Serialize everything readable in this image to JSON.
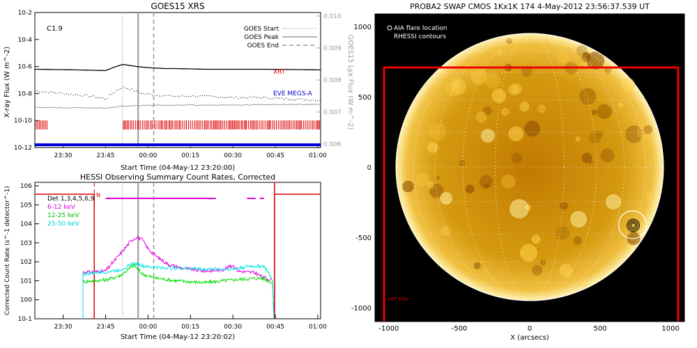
{
  "colors": {
    "goes_long": "#000000",
    "goes_short": "#000000",
    "goes_lyx": "#999999",
    "xrt": "#dd0000",
    "eve": "#0000cc",
    "h6_12": "#e000e0",
    "h12_25": "#00dd00",
    "h25_50": "#00e5e5",
    "det": "#000000",
    "fov": "#ee0000",
    "sun_limb": "#ffffff",
    "grid": "#ffffff",
    "goes_markers": "#999999"
  },
  "chart_data": [
    {
      "type": "line",
      "title": "GOES15 XRS",
      "xlabel": "Start Time (04-May-12 23:20:00)",
      "ylabel": "X-ray Flux (W m^-2)",
      "ylabel2": "GOES15 Lyx Flux (W m^-2)",
      "x_ticks": [
        "23:30",
        "23:45",
        "00:00",
        "00:15",
        "00:30",
        "00:45",
        "01:00"
      ],
      "y_ticks": [
        "10^-2",
        "10^-4",
        "10^-6",
        "10^-8",
        "10^-10",
        "10^-12"
      ],
      "y2_ticks": [
        "0.010",
        "0.009",
        "0.008",
        "0.007",
        "0.006"
      ],
      "ylim": [
        1e-12,
        0.01
      ],
      "y2lim": [
        0.006,
        0.01
      ],
      "flare_class": "C1.9",
      "legend": [
        {
          "label": "GOES Start",
          "style": "dotted"
        },
        {
          "label": "GOES Peak",
          "style": "solid"
        },
        {
          "label": "GOES End",
          "style": "dashed"
        }
      ],
      "annotations": [
        "XRT",
        "EVE MEGS-A"
      ],
      "goes_times": {
        "start": "23:51",
        "peak": "23:56",
        "end": "00:02"
      },
      "series": [
        {
          "key": "long",
          "x": [
            0,
            15,
            25,
            28,
            31,
            33,
            36,
            41,
            46,
            50,
            60,
            70,
            80,
            90,
            101
          ],
          "y": [
            -6.2,
            -6.25,
            -6.3,
            -6.05,
            -5.85,
            -5.9,
            -6.0,
            -6.1,
            -6.15,
            -6.15,
            -6.2,
            -6.2,
            -6.2,
            -6.22,
            -6.25
          ]
        },
        {
          "key": "short",
          "x": [
            0,
            10,
            20,
            25,
            28,
            31,
            34,
            38,
            42,
            50,
            60,
            70,
            80,
            90,
            101
          ],
          "y": [
            -7.8,
            -8.0,
            -8.2,
            -8.4,
            -7.9,
            -7.5,
            -7.7,
            -8.0,
            -8.1,
            -8.2,
            -8.2,
            -8.3,
            -8.3,
            -8.4,
            -8.5
          ]
        },
        {
          "key": "lyx",
          "x": [
            0,
            25,
            30,
            40,
            60,
            80,
            101
          ],
          "y": [
            0.00719,
            0.00717,
            0.00722,
            0.00725,
            0.00726,
            0.00727,
            0.00728
          ]
        }
      ]
    },
    {
      "type": "line",
      "title": "HESSI Observing Summary Count Rates, Corrected",
      "xlabel": "Start Time (04-May-12 23:20:02)",
      "ylabel": "Corrected Count Rate (s^-1 detector^-1)",
      "x_ticks": [
        "23:30",
        "23:45",
        "00:00",
        "00:15",
        "00:30",
        "00:45",
        "01:00"
      ],
      "y_ticks": [
        "10^6",
        "10^5",
        "10^4",
        "10^3",
        "10^2",
        "10^1",
        "10^0",
        "10^-1"
      ],
      "ylim": [
        0.1,
        1000000.0
      ],
      "legend": [
        {
          "label": "Det 1,3,4,5,6,9",
          "key": "det"
        },
        {
          "label": "6-12 keV",
          "key": "h6_12"
        },
        {
          "label": "12-25 keV",
          "key": "h12_25"
        },
        {
          "label": "25-50 keV",
          "key": "h25_50"
        }
      ],
      "night_marker": "N",
      "series": [
        {
          "key": "h6_12",
          "x": [
            17,
            20,
            25,
            30,
            34,
            36,
            38,
            40,
            43,
            47,
            52,
            60,
            66,
            70,
            72,
            75,
            78,
            81,
            84
          ],
          "y": [
            1.4,
            1.4,
            1.45,
            2.3,
            3.0,
            3.2,
            3.05,
            2.6,
            2.2,
            1.8,
            1.6,
            1.45,
            1.5,
            1.75,
            1.45,
            1.4,
            1.35,
            1.1,
            1.0
          ]
        },
        {
          "key": "h12_25",
          "x": [
            17,
            25,
            30,
            35,
            38,
            42,
            50,
            60,
            70,
            80,
            84
          ],
          "y": [
            0.9,
            1.0,
            1.2,
            1.75,
            1.3,
            1.1,
            0.95,
            0.85,
            1.0,
            1.1,
            0.85
          ]
        },
        {
          "key": "h25_50",
          "x": [
            17,
            25,
            30,
            35,
            40,
            50,
            60,
            70,
            76,
            81,
            84
          ],
          "y": [
            1.3,
            1.4,
            1.5,
            1.85,
            1.65,
            1.6,
            1.55,
            1.55,
            1.7,
            1.7,
            1.0
          ]
        }
      ]
    }
  ],
  "swap": {
    "title": "PROBA2 SWAP CMOS 1Kx1K 174  4-May-2012 23:56:37.539 UT",
    "xlabel": "X (arcsecs)",
    "x_ticks": [
      "-1000",
      "-500",
      "0",
      "500",
      "1000"
    ],
    "y_ticks": [
      "1000",
      "500",
      "0",
      "-500",
      "-1000"
    ],
    "legend": [
      "AIA flare location",
      "RHESSI contours"
    ],
    "fov_label": "XRT FOV",
    "flare_location": [
      730,
      -410
    ],
    "solar_radius": 950
  }
}
